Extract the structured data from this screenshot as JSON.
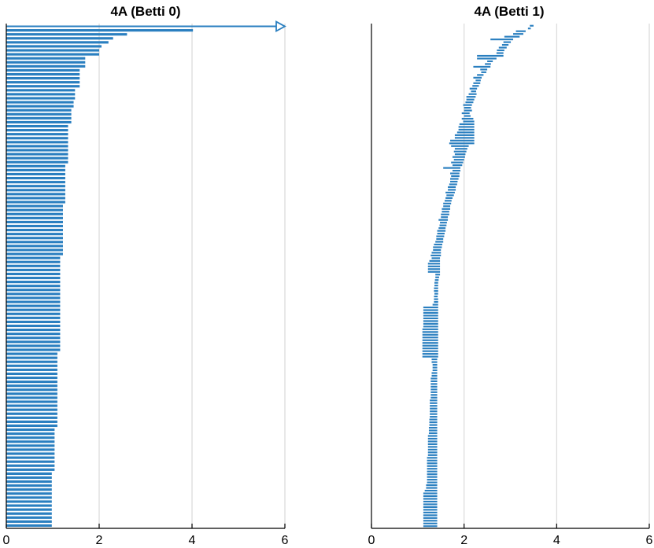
{
  "colors": {
    "bar": "#2a7fc0",
    "grid": "#d9d9d9",
    "axis": "#000000"
  },
  "chart_data": [
    {
      "type": "bar",
      "orientation": "horizontal",
      "title": "4A (Betti 0)",
      "xlabel": "",
      "ylabel": "",
      "xlim": [
        0,
        6
      ],
      "xticks": [
        "0",
        "2",
        "4",
        "6"
      ],
      "grid": "vertical",
      "infinite_bar": {
        "start": 0,
        "marker": "arrow",
        "arrow_at": 6
      },
      "groups": [
        {
          "count": 1,
          "start": 0,
          "end": 4.02
        },
        {
          "count": 1,
          "start": 0,
          "end": 2.6
        },
        {
          "count": 1,
          "start": 0,
          "end": 2.3
        },
        {
          "count": 1,
          "start": 0,
          "end": 2.2
        },
        {
          "count": 1,
          "start": 0,
          "end": 2.05
        },
        {
          "count": 2,
          "start": 0,
          "end": 2.0
        },
        {
          "count": 3,
          "start": 0,
          "end": 1.7
        },
        {
          "count": 5,
          "start": 0,
          "end": 1.58
        },
        {
          "count": 3,
          "start": 0,
          "end": 1.48
        },
        {
          "count": 2,
          "start": 0,
          "end": 1.45
        },
        {
          "count": 4,
          "start": 0,
          "end": 1.4
        },
        {
          "count": 10,
          "start": 0,
          "end": 1.33
        },
        {
          "count": 10,
          "start": 0,
          "end": 1.27
        },
        {
          "count": 13,
          "start": 0,
          "end": 1.22
        },
        {
          "count": 24,
          "start": 0,
          "end": 1.16
        },
        {
          "count": 19,
          "start": 0,
          "end": 1.1
        },
        {
          "count": 11,
          "start": 0,
          "end": 1.04
        },
        {
          "count": 14,
          "start": 0,
          "end": 0.98
        }
      ]
    },
    {
      "type": "bar",
      "orientation": "horizontal",
      "title": "4A (Betti 1)",
      "xlabel": "",
      "ylabel": "",
      "xlim": [
        0,
        6
      ],
      "xticks": [
        "0",
        "2",
        "4",
        "6"
      ],
      "grid": "vertical",
      "bars": [
        [
          3.42,
          3.5
        ],
        [
          3.38,
          3.44
        ],
        [
          3.12,
          3.33
        ],
        [
          3.06,
          3.28
        ],
        [
          2.87,
          3.2
        ],
        [
          2.57,
          3.06
        ],
        [
          2.85,
          3.01
        ],
        [
          2.82,
          2.96
        ],
        [
          2.75,
          2.92
        ],
        [
          2.71,
          2.87
        ],
        [
          2.7,
          2.85
        ],
        [
          2.28,
          2.85
        ],
        [
          2.28,
          2.7
        ],
        [
          2.5,
          2.62
        ],
        [
          2.45,
          2.58
        ],
        [
          2.2,
          2.57
        ],
        [
          2.35,
          2.5
        ],
        [
          2.37,
          2.48
        ],
        [
          2.28,
          2.42
        ],
        [
          2.2,
          2.38
        ],
        [
          2.25,
          2.36
        ],
        [
          2.2,
          2.35
        ],
        [
          2.18,
          2.32
        ],
        [
          2.12,
          2.28
        ],
        [
          2.15,
          2.26
        ],
        [
          2.1,
          2.27
        ],
        [
          2.05,
          2.25
        ],
        [
          2.05,
          2.22
        ],
        [
          2.03,
          2.2
        ],
        [
          1.98,
          2.17
        ],
        [
          2.0,
          2.15
        ],
        [
          2.0,
          2.17
        ],
        [
          1.95,
          2.12
        ],
        [
          2.0,
          2.14
        ],
        [
          1.95,
          2.2
        ],
        [
          1.98,
          2.22
        ],
        [
          1.9,
          2.22
        ],
        [
          1.88,
          2.22
        ],
        [
          1.88,
          2.22
        ],
        [
          1.85,
          2.22
        ],
        [
          1.8,
          2.22
        ],
        [
          1.8,
          2.22
        ],
        [
          1.7,
          2.22
        ],
        [
          1.68,
          2.22
        ],
        [
          1.72,
          2.1
        ],
        [
          1.8,
          2.07
        ],
        [
          1.78,
          2.05
        ],
        [
          1.8,
          2.03
        ],
        [
          1.75,
          2.02
        ],
        [
          1.78,
          2.0
        ],
        [
          1.72,
          1.98
        ],
        [
          1.75,
          1.96
        ],
        [
          1.55,
          1.92
        ],
        [
          1.75,
          1.92
        ],
        [
          1.7,
          1.9
        ],
        [
          1.72,
          1.9
        ],
        [
          1.7,
          1.88
        ],
        [
          1.7,
          1.86
        ],
        [
          1.68,
          1.85
        ],
        [
          1.65,
          1.82
        ],
        [
          1.65,
          1.82
        ],
        [
          1.6,
          1.8
        ],
        [
          1.62,
          1.78
        ],
        [
          1.6,
          1.75
        ],
        [
          1.58,
          1.73
        ],
        [
          1.55,
          1.72
        ],
        [
          1.55,
          1.7
        ],
        [
          1.52,
          1.7
        ],
        [
          1.52,
          1.68
        ],
        [
          1.5,
          1.68
        ],
        [
          1.5,
          1.65
        ],
        [
          1.45,
          1.65
        ],
        [
          1.48,
          1.63
        ],
        [
          1.47,
          1.62
        ],
        [
          1.45,
          1.6
        ],
        [
          1.42,
          1.6
        ],
        [
          1.42,
          1.58
        ],
        [
          1.4,
          1.57
        ],
        [
          1.4,
          1.55
        ],
        [
          1.38,
          1.55
        ],
        [
          1.35,
          1.53
        ],
        [
          1.33,
          1.52
        ],
        [
          1.33,
          1.5
        ],
        [
          1.3,
          1.5
        ],
        [
          1.28,
          1.5
        ],
        [
          1.3,
          1.48
        ],
        [
          1.25,
          1.48
        ],
        [
          1.22,
          1.48
        ],
        [
          1.22,
          1.48
        ],
        [
          1.22,
          1.48
        ],
        [
          1.22,
          1.48
        ],
        [
          1.38,
          1.48
        ],
        [
          1.38,
          1.46
        ],
        [
          1.37,
          1.45
        ],
        [
          1.36,
          1.44
        ],
        [
          1.36,
          1.44
        ],
        [
          1.35,
          1.44
        ],
        [
          1.35,
          1.44
        ],
        [
          1.36,
          1.44
        ],
        [
          1.35,
          1.43
        ],
        [
          1.35,
          1.44
        ],
        [
          1.35,
          1.44
        ],
        [
          1.32,
          1.44
        ],
        [
          1.12,
          1.44
        ],
        [
          1.12,
          1.44
        ],
        [
          1.12,
          1.44
        ],
        [
          1.12,
          1.44
        ],
        [
          1.12,
          1.44
        ],
        [
          1.12,
          1.44
        ],
        [
          1.12,
          1.44
        ],
        [
          1.12,
          1.44
        ],
        [
          1.1,
          1.44
        ],
        [
          1.1,
          1.44
        ],
        [
          1.1,
          1.44
        ],
        [
          1.1,
          1.44
        ],
        [
          1.1,
          1.44
        ],
        [
          1.1,
          1.44
        ],
        [
          1.1,
          1.44
        ],
        [
          1.1,
          1.44
        ],
        [
          1.1,
          1.44
        ],
        [
          1.1,
          1.44
        ],
        [
          1.1,
          1.44
        ],
        [
          1.3,
          1.42
        ],
        [
          1.3,
          1.42
        ],
        [
          1.32,
          1.42
        ],
        [
          1.32,
          1.42
        ],
        [
          1.32,
          1.42
        ],
        [
          1.3,
          1.42
        ],
        [
          1.3,
          1.42
        ],
        [
          1.28,
          1.42
        ],
        [
          1.28,
          1.42
        ],
        [
          1.28,
          1.42
        ],
        [
          1.28,
          1.42
        ],
        [
          1.28,
          1.42
        ],
        [
          1.28,
          1.42
        ],
        [
          1.28,
          1.42
        ],
        [
          1.28,
          1.42
        ],
        [
          1.26,
          1.42
        ],
        [
          1.26,
          1.42
        ],
        [
          1.26,
          1.42
        ],
        [
          1.26,
          1.42
        ],
        [
          1.26,
          1.42
        ],
        [
          1.26,
          1.42
        ],
        [
          1.26,
          1.42
        ],
        [
          1.25,
          1.42
        ],
        [
          1.25,
          1.42
        ],
        [
          1.25,
          1.42
        ],
        [
          1.24,
          1.42
        ],
        [
          1.24,
          1.42
        ],
        [
          1.24,
          1.42
        ],
        [
          1.22,
          1.42
        ],
        [
          1.22,
          1.42
        ],
        [
          1.22,
          1.42
        ],
        [
          1.22,
          1.42
        ],
        [
          1.22,
          1.42
        ],
        [
          1.22,
          1.42
        ],
        [
          1.22,
          1.42
        ],
        [
          1.22,
          1.42
        ],
        [
          1.2,
          1.42
        ],
        [
          1.2,
          1.42
        ],
        [
          1.2,
          1.42
        ],
        [
          1.2,
          1.42
        ],
        [
          1.2,
          1.42
        ],
        [
          1.2,
          1.42
        ],
        [
          1.2,
          1.42
        ],
        [
          1.2,
          1.42
        ],
        [
          1.2,
          1.42
        ],
        [
          1.2,
          1.42
        ],
        [
          1.18,
          1.42
        ],
        [
          1.18,
          1.42
        ],
        [
          1.15,
          1.42
        ],
        [
          1.12,
          1.42
        ],
        [
          1.12,
          1.42
        ],
        [
          1.12,
          1.42
        ],
        [
          1.12,
          1.42
        ],
        [
          1.12,
          1.42
        ],
        [
          1.12,
          1.42
        ],
        [
          1.12,
          1.42
        ],
        [
          1.12,
          1.42
        ],
        [
          1.12,
          1.42
        ],
        [
          1.12,
          1.42
        ],
        [
          1.12,
          1.42
        ],
        [
          1.12,
          1.42
        ],
        [
          1.12,
          1.42
        ]
      ]
    }
  ]
}
